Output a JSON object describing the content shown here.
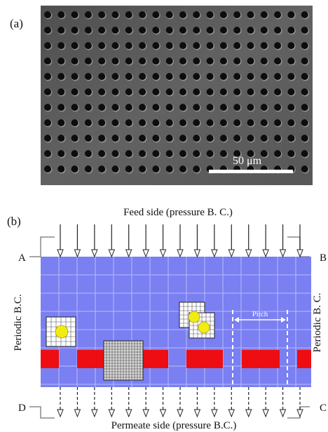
{
  "panel_a": {
    "label": "(a)",
    "scale_bar_label": "50 μm",
    "hole_grid": {
      "rows": 11,
      "cols": 20
    }
  },
  "panel_b": {
    "label": "(b)",
    "feed_label": "Feed side (pressure B. C.)",
    "permeate_label": "Permeate side (pressure B.C.)",
    "periodic_left": "Periodic B.C.",
    "periodic_right": "Periodic B. C.",
    "corner_a": "A",
    "corner_b": "B",
    "corner_c": "C",
    "corner_d": "D",
    "pitch_label": "Pitch",
    "arrow_count": 15
  },
  "colors": {
    "sem_background": "#5a5a5a",
    "hole": "#0d0d0d",
    "domain_fill": "#7a7ff2",
    "grid_line": "#b9bdf8",
    "membrane": "#ee0d12",
    "particle": "#f1ec13"
  }
}
